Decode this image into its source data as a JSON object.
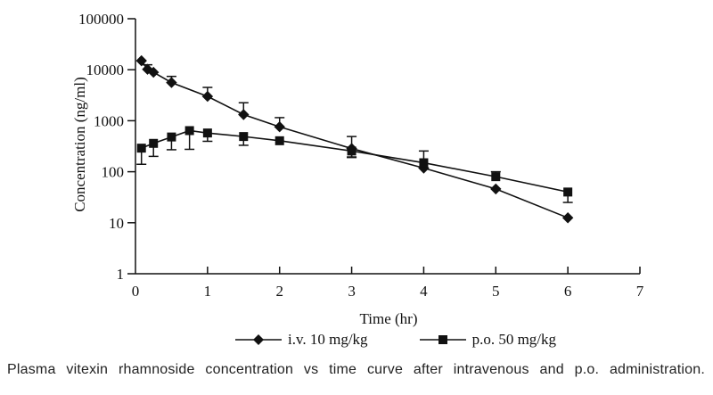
{
  "figure": {
    "caption": "Plasma vitexin rhamnoside concentration vs time curve after intravenous and p.o. administration."
  },
  "chart_data": {
    "type": "line",
    "title": "",
    "xlabel": "Time (hr)",
    "ylabel": "Concentration (ng/ml)",
    "y_scale": "log",
    "xlim": [
      0,
      7
    ],
    "ylim_log": [
      1,
      100000
    ],
    "x_ticks": [
      0,
      1,
      2,
      3,
      4,
      5,
      6,
      7
    ],
    "y_ticks": [
      1,
      10,
      100,
      1000,
      10000,
      100000
    ],
    "grid": false,
    "legend_position": "bottom-center",
    "ink_color": "#111111",
    "background_color": "#ffffff",
    "series": [
      {
        "name": "i.v. 10 mg/kg",
        "marker": "diamond",
        "points": [
          {
            "t": 0.083,
            "c": 15000
          },
          {
            "t": 0.167,
            "c": 10200,
            "hi": 12500
          },
          {
            "t": 0.25,
            "c": 8900
          },
          {
            "t": 0.5,
            "c": 5600,
            "hi": 7400
          },
          {
            "t": 1,
            "c": 3000,
            "hi": 4500
          },
          {
            "t": 1.5,
            "c": 1320,
            "hi": 2250
          },
          {
            "t": 2,
            "c": 760,
            "hi": 1150
          },
          {
            "t": 3,
            "c": 285,
            "hi": 490,
            "lo": 195
          },
          {
            "t": 4,
            "c": 118
          },
          {
            "t": 5,
            "c": 46
          },
          {
            "t": 6,
            "c": 12.5
          }
        ]
      },
      {
        "name": "p.o. 50 mg/kg",
        "marker": "square",
        "points": [
          {
            "t": 0.083,
            "c": 290,
            "lo": 140
          },
          {
            "t": 0.25,
            "c": 360,
            "lo": 200
          },
          {
            "t": 0.5,
            "c": 480,
            "lo": 270
          },
          {
            "t": 0.75,
            "c": 640,
            "lo": 275
          },
          {
            "t": 1,
            "c": 575,
            "lo": 395
          },
          {
            "t": 1.5,
            "c": 490,
            "lo": 330
          },
          {
            "t": 2,
            "c": 405
          },
          {
            "t": 3,
            "c": 255,
            "lo": 190
          },
          {
            "t": 4,
            "c": 150,
            "hi": 255
          },
          {
            "t": 5,
            "c": 80,
            "hi": 100
          },
          {
            "t": 6,
            "c": 40,
            "lo": 25
          }
        ]
      }
    ]
  }
}
